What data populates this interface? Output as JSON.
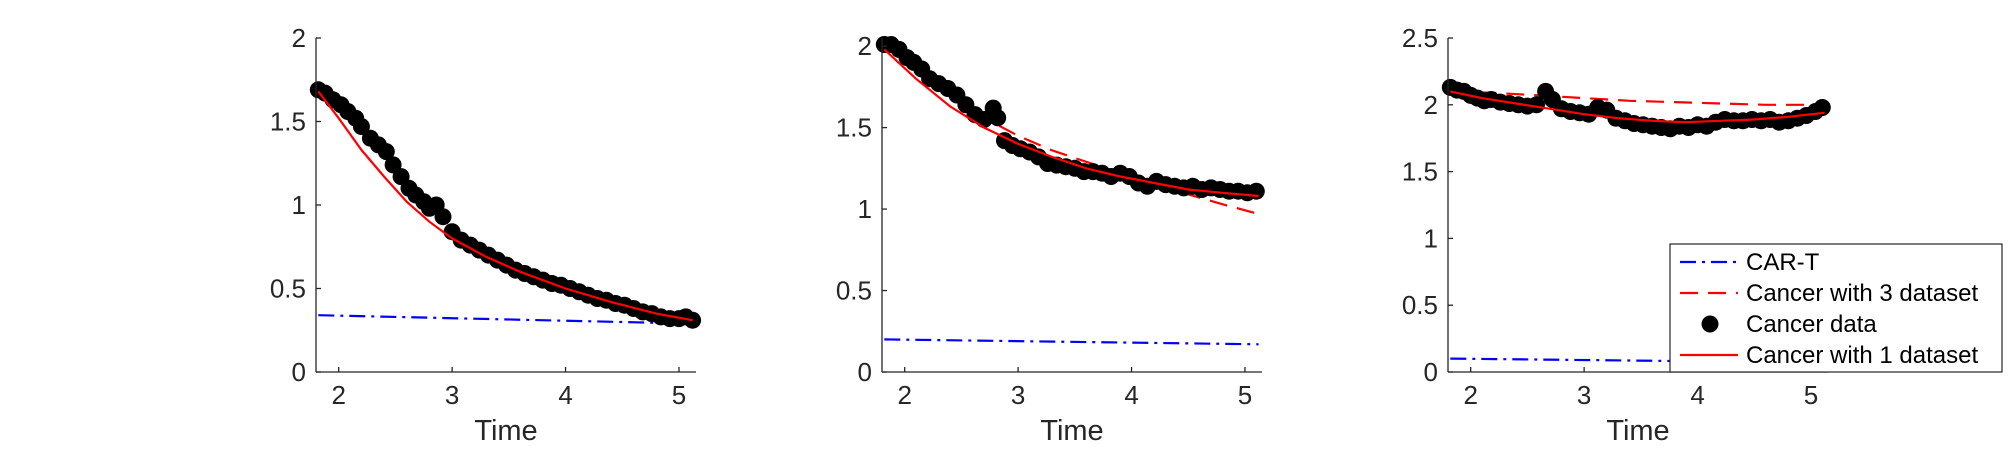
{
  "chart_data": [
    {
      "type": "line",
      "xlabel": "Time",
      "ylabel": "",
      "xlim": [
        1.8,
        5.15
      ],
      "ylim": [
        0,
        2
      ],
      "xticks": [
        2,
        3,
        4,
        5
      ],
      "yticks": [
        0,
        0.5,
        1,
        1.5,
        2
      ],
      "ytick_labels": [
        "0",
        "0.5",
        "1",
        "1.5",
        "2"
      ],
      "series": [
        {
          "style": "cart",
          "x": [
            1.82,
            5.12
          ],
          "y": [
            0.34,
            0.29
          ]
        },
        {
          "style": "fit1",
          "x": [
            1.82,
            2.0,
            2.2,
            2.4,
            2.6,
            2.8,
            3.0,
            3.3,
            3.6,
            4.0,
            4.4,
            4.8,
            5.12
          ],
          "y": [
            1.68,
            1.52,
            1.33,
            1.17,
            1.02,
            0.9,
            0.8,
            0.69,
            0.6,
            0.5,
            0.42,
            0.35,
            0.31
          ]
        },
        {
          "style": "data",
          "x": [
            1.82,
            1.88,
            1.95,
            2.02,
            2.08,
            2.15,
            2.2,
            2.28,
            2.35,
            2.42,
            2.48,
            2.55,
            2.62,
            2.68,
            2.75,
            2.8,
            2.86,
            2.92,
            3.0,
            3.08,
            3.16,
            3.24,
            3.32,
            3.4,
            3.48,
            3.56,
            3.64,
            3.72,
            3.8,
            3.88,
            3.96,
            4.04,
            4.12,
            4.2,
            4.28,
            4.36,
            4.44,
            4.52,
            4.6,
            4.68,
            4.76,
            4.84,
            4.92,
            5.0,
            5.06,
            5.12
          ],
          "y": [
            1.69,
            1.67,
            1.63,
            1.6,
            1.56,
            1.52,
            1.47,
            1.4,
            1.36,
            1.32,
            1.24,
            1.17,
            1.1,
            1.06,
            1.02,
            0.98,
            1.0,
            0.93,
            0.84,
            0.79,
            0.76,
            0.73,
            0.7,
            0.67,
            0.64,
            0.61,
            0.59,
            0.57,
            0.55,
            0.53,
            0.52,
            0.5,
            0.48,
            0.46,
            0.44,
            0.43,
            0.41,
            0.4,
            0.38,
            0.36,
            0.35,
            0.33,
            0.32,
            0.32,
            0.33,
            0.31
          ]
        }
      ]
    },
    {
      "type": "line",
      "xlabel": "Time",
      "ylabel": "",
      "xlim": [
        1.8,
        5.15
      ],
      "ylim": [
        0,
        2.05
      ],
      "xticks": [
        2,
        3,
        4,
        5
      ],
      "yticks": [
        0,
        0.5,
        1,
        1.5,
        2
      ],
      "ytick_labels": [
        "0",
        "0.5",
        "1",
        "1.5",
        "2"
      ],
      "series": [
        {
          "style": "cart",
          "x": [
            1.82,
            5.12
          ],
          "y": [
            0.2,
            0.17
          ]
        },
        {
          "style": "fit3",
          "x": [
            1.82,
            2.1,
            2.4,
            2.7,
            3.0,
            3.3,
            3.6,
            3.9,
            4.2,
            4.5,
            4.8,
            5.12
          ],
          "y": [
            2.0,
            1.85,
            1.7,
            1.56,
            1.45,
            1.36,
            1.29,
            1.22,
            1.15,
            1.09,
            1.03,
            0.97
          ]
        },
        {
          "style": "fit1",
          "x": [
            1.82,
            2.1,
            2.4,
            2.7,
            3.0,
            3.3,
            3.6,
            3.9,
            4.2,
            4.5,
            4.8,
            5.12
          ],
          "y": [
            1.98,
            1.8,
            1.63,
            1.5,
            1.4,
            1.32,
            1.25,
            1.2,
            1.16,
            1.12,
            1.1,
            1.08
          ]
        },
        {
          "style": "data",
          "x": [
            1.82,
            1.88,
            1.95,
            2.02,
            2.08,
            2.15,
            2.22,
            2.3,
            2.38,
            2.46,
            2.54,
            2.62,
            2.7,
            2.78,
            2.82,
            2.88,
            2.95,
            3.02,
            3.1,
            3.18,
            3.26,
            3.34,
            3.42,
            3.5,
            3.58,
            3.66,
            3.74,
            3.82,
            3.9,
            3.98,
            4.06,
            4.14,
            4.22,
            4.3,
            4.38,
            4.46,
            4.54,
            4.62,
            4.7,
            4.78,
            4.86,
            4.94,
            5.02,
            5.1
          ],
          "y": [
            2.01,
            2.01,
            1.98,
            1.93,
            1.9,
            1.86,
            1.8,
            1.77,
            1.74,
            1.7,
            1.64,
            1.58,
            1.55,
            1.62,
            1.56,
            1.42,
            1.39,
            1.37,
            1.35,
            1.32,
            1.28,
            1.27,
            1.26,
            1.25,
            1.23,
            1.23,
            1.22,
            1.2,
            1.22,
            1.2,
            1.16,
            1.14,
            1.17,
            1.15,
            1.14,
            1.13,
            1.14,
            1.12,
            1.13,
            1.12,
            1.11,
            1.11,
            1.1,
            1.11
          ]
        }
      ]
    },
    {
      "type": "line",
      "xlabel": "Time",
      "ylabel": "",
      "xlim": [
        1.8,
        5.15
      ],
      "ylim": [
        0,
        2.5
      ],
      "xticks": [
        2,
        3,
        4,
        5
      ],
      "yticks": [
        0,
        0.5,
        1,
        1.5,
        2,
        2.5
      ],
      "ytick_labels": [
        "0",
        "0.5",
        "1",
        "1.5",
        "2",
        "2.5"
      ],
      "series": [
        {
          "style": "cart",
          "x": [
            1.82,
            5.12
          ],
          "y": [
            0.1,
            0.07
          ]
        },
        {
          "style": "fit3",
          "x": [
            1.82,
            2.2,
            2.6,
            3.0,
            3.4,
            3.8,
            4.2,
            4.6,
            5.12
          ],
          "y": [
            2.1,
            2.09,
            2.07,
            2.05,
            2.03,
            2.02,
            2.01,
            2.0,
            2.0
          ]
        },
        {
          "style": "fit1",
          "x": [
            1.82,
            2.1,
            2.4,
            2.7,
            3.0,
            3.3,
            3.6,
            3.9,
            4.2,
            4.5,
            4.8,
            5.12
          ],
          "y": [
            2.1,
            2.05,
            2.01,
            1.97,
            1.93,
            1.9,
            1.88,
            1.87,
            1.88,
            1.89,
            1.91,
            1.94
          ]
        },
        {
          "style": "data",
          "x": [
            1.82,
            1.88,
            1.94,
            2.0,
            2.06,
            2.12,
            2.18,
            2.26,
            2.34,
            2.42,
            2.5,
            2.58,
            2.66,
            2.72,
            2.8,
            2.88,
            2.96,
            3.04,
            3.12,
            3.2,
            3.28,
            3.36,
            3.44,
            3.52,
            3.6,
            3.68,
            3.76,
            3.84,
            3.92,
            4.0,
            4.08,
            4.16,
            4.24,
            4.32,
            4.4,
            4.48,
            4.56,
            4.64,
            4.72,
            4.8,
            4.88,
            4.96,
            5.04,
            5.1
          ],
          "y": [
            2.13,
            2.11,
            2.1,
            2.07,
            2.05,
            2.03,
            2.04,
            2.02,
            2.01,
            2.0,
            1.99,
            2.0,
            2.1,
            2.04,
            1.97,
            1.95,
            1.94,
            1.93,
            1.98,
            1.96,
            1.9,
            1.88,
            1.86,
            1.85,
            1.84,
            1.83,
            1.82,
            1.84,
            1.83,
            1.85,
            1.84,
            1.87,
            1.89,
            1.88,
            1.88,
            1.89,
            1.88,
            1.89,
            1.87,
            1.88,
            1.9,
            1.92,
            1.95,
            1.98
          ]
        }
      ],
      "legend": {
        "placement": "lower-right",
        "entries": [
          {
            "label": "CAR-T",
            "style": "cart"
          },
          {
            "label": "Cancer with 3 dataset",
            "style": "fit3"
          },
          {
            "label": "Cancer data",
            "style": "data"
          },
          {
            "label": "Cancer with 1 dataset",
            "style": "fit1"
          }
        ]
      }
    }
  ],
  "colors": {
    "cart": "#0000ff",
    "fit": "#ff0000",
    "data": "#000000",
    "axis": "#262626"
  }
}
